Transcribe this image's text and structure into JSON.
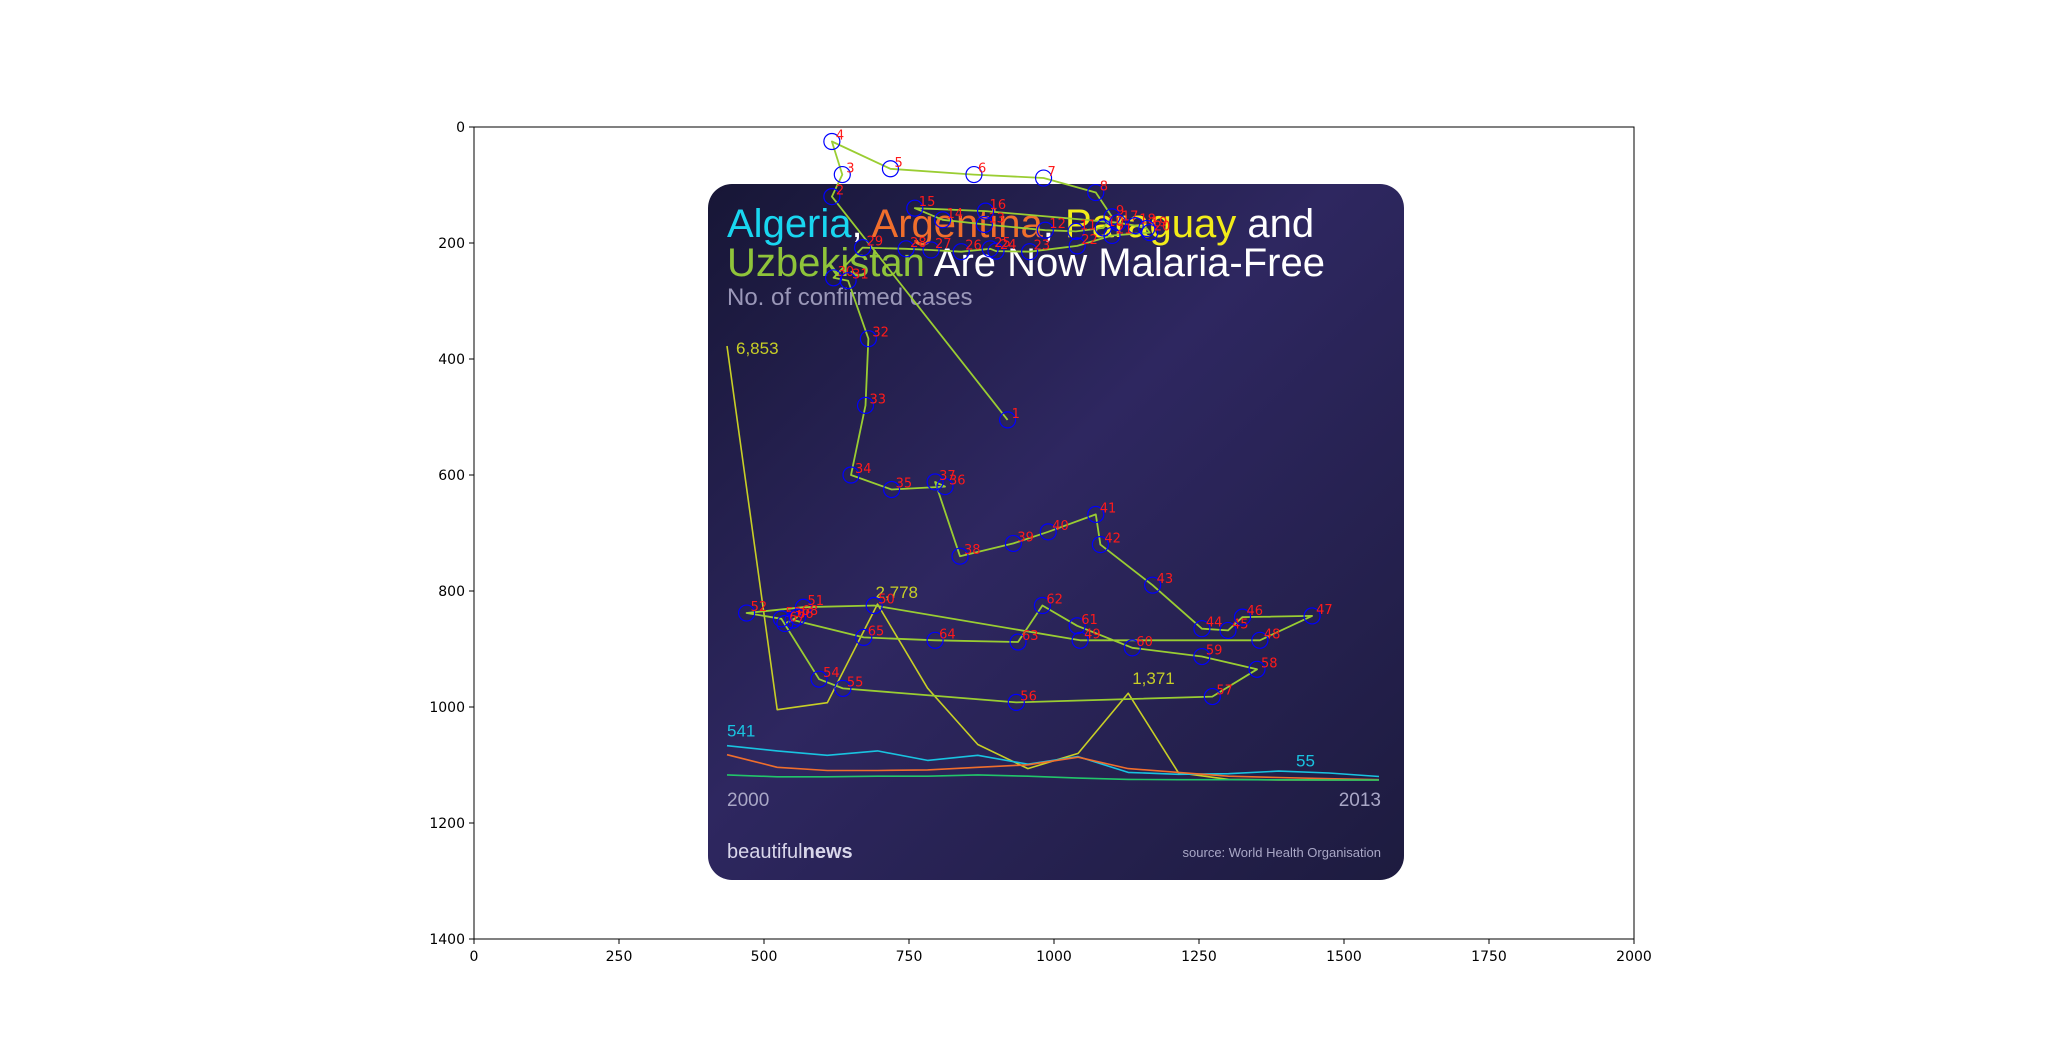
{
  "chart_data": [
    {
      "type": "line",
      "role": "host-axes",
      "xlim": [
        0,
        2000
      ],
      "ylim": [
        1400,
        0
      ],
      "x_ticks": [
        0,
        250,
        500,
        750,
        1000,
        1250,
        1500,
        1750,
        2000
      ],
      "y_ticks": [
        0,
        200,
        400,
        600,
        800,
        1000,
        1200,
        1400
      ],
      "x_tick_labels": [
        "0",
        "250",
        "500",
        "750",
        "1000",
        "1250",
        "1500",
        "1750",
        "2000"
      ],
      "y_tick_labels": [
        "0",
        "200",
        "400",
        "600",
        "800",
        "1000",
        "1200",
        "1400"
      ],
      "grid": false,
      "colors": {
        "path": "#9acd32",
        "markers": "#0000ff",
        "labels": "#ff1a1a"
      },
      "series": [
        {
          "points": [
            {
              "label": "1",
              "x": 920,
              "y": 505
            },
            {
              "label": "2",
              "x": 617,
              "y": 120
            },
            {
              "label": "3",
              "x": 635,
              "y": 82
            },
            {
              "label": "4",
              "x": 617,
              "y": 25
            },
            {
              "label": "5",
              "x": 718,
              "y": 72
            },
            {
              "label": "6",
              "x": 862,
              "y": 82
            },
            {
              "label": "7",
              "x": 982,
              "y": 88
            },
            {
              "label": "8",
              "x": 1072,
              "y": 113
            },
            {
              "label": "9",
              "x": 1100,
              "y": 155
            },
            {
              "label": "10",
              "x": 1085,
              "y": 174
            },
            {
              "label": "11",
              "x": 1038,
              "y": 180
            },
            {
              "label": "12",
              "x": 985,
              "y": 178
            },
            {
              "label": "13",
              "x": 880,
              "y": 168
            },
            {
              "label": "14",
              "x": 808,
              "y": 160
            },
            {
              "label": "15",
              "x": 760,
              "y": 140
            },
            {
              "label": "16",
              "x": 882,
              "y": 145
            },
            {
              "label": "17",
              "x": 1110,
              "y": 165
            },
            {
              "label": "18",
              "x": 1140,
              "y": 170
            },
            {
              "label": "19",
              "x": 1160,
              "y": 175
            },
            {
              "label": "20",
              "x": 1165,
              "y": 182
            },
            {
              "label": "21",
              "x": 1100,
              "y": 187
            },
            {
              "label": "22",
              "x": 1040,
              "y": 205
            },
            {
              "label": "23",
              "x": 958,
              "y": 215
            },
            {
              "label": "24",
              "x": 900,
              "y": 214
            },
            {
              "label": "25",
              "x": 890,
              "y": 210
            },
            {
              "label": "26",
              "x": 840,
              "y": 215
            },
            {
              "label": "27",
              "x": 788,
              "y": 212
            },
            {
              "label": "28",
              "x": 745,
              "y": 210
            },
            {
              "label": "29",
              "x": 670,
              "y": 208
            },
            {
              "label": "30",
              "x": 620,
              "y": 260
            },
            {
              "label": "31",
              "x": 645,
              "y": 265
            },
            {
              "label": "32",
              "x": 680,
              "y": 365
            },
            {
              "label": "33",
              "x": 675,
              "y": 480
            },
            {
              "label": "34",
              "x": 650,
              "y": 600
            },
            {
              "label": "35",
              "x": 720,
              "y": 625
            },
            {
              "label": "36",
              "x": 812,
              "y": 620
            },
            {
              "label": "37",
              "x": 795,
              "y": 612
            },
            {
              "label": "38",
              "x": 838,
              "y": 740
            },
            {
              "label": "39",
              "x": 930,
              "y": 718
            },
            {
              "label": "40",
              "x": 990,
              "y": 698
            },
            {
              "label": "41",
              "x": 1072,
              "y": 668
            },
            {
              "label": "42",
              "x": 1080,
              "y": 720
            },
            {
              "label": "43",
              "x": 1170,
              "y": 790
            },
            {
              "label": "44",
              "x": 1255,
              "y": 865
            },
            {
              "label": "45",
              "x": 1300,
              "y": 868
            },
            {
              "label": "46",
              "x": 1325,
              "y": 845
            },
            {
              "label": "47",
              "x": 1445,
              "y": 843
            },
            {
              "label": "48",
              "x": 1355,
              "y": 885
            },
            {
              "label": "49",
              "x": 1045,
              "y": 885
            },
            {
              "label": "50",
              "x": 690,
              "y": 825
            },
            {
              "label": "51",
              "x": 568,
              "y": 828
            },
            {
              "label": "52",
              "x": 470,
              "y": 838
            },
            {
              "label": "53",
              "x": 530,
              "y": 848
            },
            {
              "label": "54",
              "x": 595,
              "y": 952
            },
            {
              "label": "55",
              "x": 636,
              "y": 968
            },
            {
              "label": "56",
              "x": 935,
              "y": 992
            },
            {
              "label": "57",
              "x": 1273,
              "y": 982
            },
            {
              "label": "58",
              "x": 1350,
              "y": 935
            },
            {
              "label": "59",
              "x": 1255,
              "y": 913
            },
            {
              "label": "60",
              "x": 1135,
              "y": 898
            },
            {
              "label": "61",
              "x": 1040,
              "y": 860
            },
            {
              "label": "62",
              "x": 980,
              "y": 825
            },
            {
              "label": "63",
              "x": 938,
              "y": 888
            },
            {
              "label": "64",
              "x": 795,
              "y": 885
            },
            {
              "label": "65",
              "x": 672,
              "y": 880
            },
            {
              "label": "66",
              "x": 550,
              "y": 850
            },
            {
              "label": "67",
              "x": 536,
              "y": 856
            },
            {
              "label": "68",
              "x": 558,
              "y": 845
            }
          ]
        }
      ]
    },
    {
      "type": "line",
      "role": "embedded-infographic",
      "title_parts": [
        {
          "text": "Algeria",
          "color": "#19d6f0"
        },
        {
          "text": ",",
          "color": "#ffffff"
        },
        {
          "text": "Argentina",
          "color": "#f06e2c"
        },
        {
          "text": ",",
          "color": "#ffffff"
        },
        {
          "text": "Paraguay",
          "color": "#f2ec19"
        },
        {
          "text": "and",
          "color": "#ffffff"
        }
      ],
      "title_line2_parts": [
        {
          "text": "Uzbekistan",
          "color": "#8fc43a"
        },
        {
          "text": "Are Now Malaria-Free",
          "color": "#ffffff"
        }
      ],
      "subtitle": "No. of confirmed cases",
      "x_start_label": "2000",
      "x_end_label": "2013",
      "brand": {
        "light": "beautiful",
        "bold": "news"
      },
      "source": "source: World Health Organisation",
      "x": [
        2000,
        2001,
        2002,
        2003,
        2004,
        2005,
        2006,
        2007,
        2008,
        2009,
        2010,
        2011,
        2012,
        2013
      ],
      "series": [
        {
          "color": "#c8cf26",
          "values": [
            6853,
            1110,
            1220,
            2778,
            1450,
            560,
            180,
            420,
            1371,
            115,
            10,
            1,
            1,
            0
          ]
        },
        {
          "color": "#19c3e0",
          "values": [
            541,
            460,
            390,
            460,
            310,
            390,
            250,
            370,
            120,
            90,
            100,
            140,
            110,
            55
          ]
        },
        {
          "color": "#f06e2c",
          "values": [
            400,
            200,
            150,
            150,
            160,
            200,
            240,
            360,
            180,
            120,
            60,
            40,
            20,
            5
          ]
        },
        {
          "color": "#22c56a",
          "values": [
            80,
            50,
            50,
            60,
            60,
            80,
            60,
            30,
            10,
            5,
            5,
            3,
            0,
            0
          ]
        }
      ],
      "annotations": [
        {
          "text": "6,853",
          "color": "#c8cf26"
        },
        {
          "text": "2,778",
          "color": "#c8cf26"
        },
        {
          "text": "1,371",
          "color": "#c8cf26"
        },
        {
          "text": "541",
          "color": "#19c3e0"
        },
        {
          "text": "55",
          "color": "#19c3e0"
        }
      ]
    }
  ]
}
